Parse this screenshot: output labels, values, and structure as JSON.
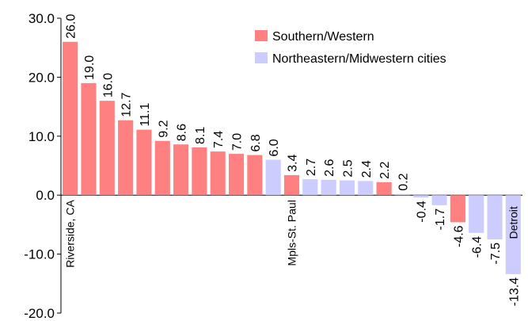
{
  "chart_data": {
    "type": "bar",
    "ylim": [
      -20,
      30
    ],
    "yticks": [
      "30.0",
      "20.0",
      "10.0",
      "0.0",
      "-10.0",
      "-20.0"
    ],
    "grid": false,
    "legend_placement": "top-right",
    "colors": {
      "southern_western": "#ff8080",
      "northeastern_midwestern": "#ccccff"
    },
    "legend": [
      {
        "group": "southern_western",
        "label": "Southern/Western"
      },
      {
        "group": "northeastern_midwestern",
        "label": "Northeastern/Midwestern cities"
      }
    ],
    "values": [
      26.0,
      19.0,
      16.0,
      12.7,
      11.1,
      9.2,
      8.6,
      8.1,
      7.4,
      7.0,
      6.8,
      6.0,
      3.4,
      2.7,
      2.6,
      2.5,
      2.4,
      2.2,
      0.2,
      -0.4,
      -1.7,
      -4.6,
      -6.4,
      -7.5,
      -13.4
    ],
    "value_labels": [
      "26.0",
      "19.0",
      "16.0",
      "12.7",
      "11.1",
      "9.2",
      "8.6",
      "8.1",
      "7.4",
      "7.0",
      "6.8",
      "6.0",
      "3.4",
      "2.7",
      "2.6",
      "2.5",
      "2.4",
      "2.2",
      "0.2",
      "-0.4",
      "-1.7",
      "-4.6",
      "-6.4",
      "-7.5",
      "-13.4"
    ],
    "groups": [
      "southern_western",
      "southern_western",
      "southern_western",
      "southern_western",
      "southern_western",
      "southern_western",
      "southern_western",
      "southern_western",
      "southern_western",
      "southern_western",
      "southern_western",
      "northeastern_midwestern",
      "southern_western",
      "northeastern_midwestern",
      "northeastern_midwestern",
      "northeastern_midwestern",
      "northeastern_midwestern",
      "southern_western",
      "northeastern_midwestern",
      "northeastern_midwestern",
      "northeastern_midwestern",
      "southern_western",
      "northeastern_midwestern",
      "northeastern_midwestern",
      "northeastern_midwestern"
    ],
    "category_labels": [
      {
        "index": 0,
        "text": "Riverside, CA"
      },
      {
        "index": 12,
        "text": "Mpls-St. Paul"
      },
      {
        "index": 24,
        "text": "Detroit"
      }
    ]
  }
}
